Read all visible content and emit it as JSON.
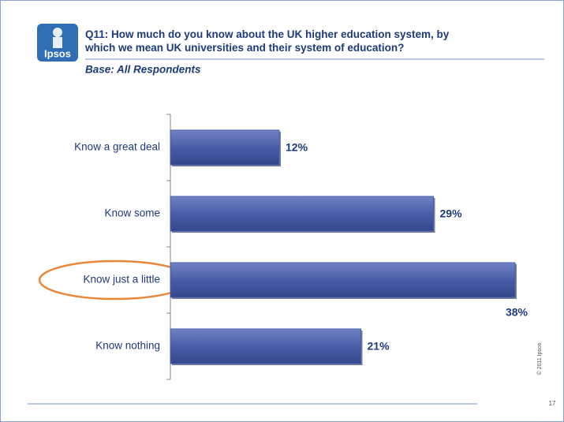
{
  "logo": "Ipsos",
  "footer": {
    "copyright": "© 2011 Ipsos",
    "page_number": "17"
  },
  "chart_data": {
    "type": "bar",
    "orientation": "horizontal",
    "title": "Q11:  How much do you know about the UK higher education system, by which we mean UK universities and their system of education?",
    "subtitle": "Base: All Respondents",
    "categories": [
      "Know a great deal",
      "Know some",
      "Know just a little",
      "Know nothing"
    ],
    "values": [
      12,
      29,
      38,
      21
    ],
    "value_labels": [
      "12%",
      "29%",
      "38%",
      "21%"
    ],
    "color": "#4a5ea8"
  }
}
